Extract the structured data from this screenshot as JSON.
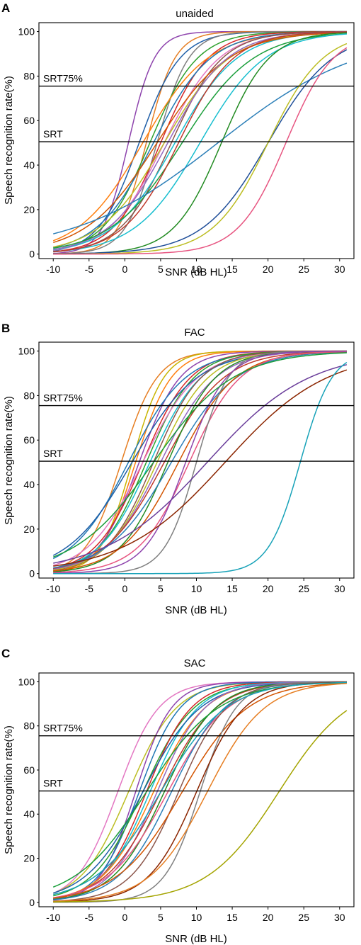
{
  "chart_data": [
    {
      "type": "line",
      "panel_label": "A",
      "title": "unaided",
      "xlabel": "SNR (dB HL)",
      "ylabel": "Speech recognition rate(%)",
      "xlim": [
        -12,
        32
      ],
      "ylim": [
        -2,
        104
      ],
      "xticks": [
        -10,
        -5,
        0,
        5,
        10,
        15,
        20,
        25,
        30
      ],
      "yticks": [
        0,
        20,
        40,
        60,
        80,
        100
      ],
      "reference_lines": [
        {
          "label": "SRT75%",
          "y": 75.5
        },
        {
          "label": "SRT",
          "y": 50.5
        }
      ],
      "x_range": [
        -10,
        31
      ],
      "series": [
        {
          "color": "#8e44ad",
          "srt": 0.5,
          "slope": 0.55
        },
        {
          "color": "#e67e22",
          "srt": 3.0,
          "slope": 0.5
        },
        {
          "color": "#1f5fa8",
          "srt": 2.0,
          "slope": 0.35
        },
        {
          "color": "#7f7f7f",
          "srt": 4.5,
          "slope": 0.45
        },
        {
          "color": "#2ca02c",
          "srt": 3.5,
          "slope": 0.3
        },
        {
          "color": "#d62728",
          "srt": 5.0,
          "slope": 0.3
        },
        {
          "color": "#ff7f0e",
          "srt": 2.5,
          "slope": 0.22
        },
        {
          "color": "#1f77b4",
          "srt": 4.0,
          "slope": 0.25
        },
        {
          "color": "#e377c2",
          "srt": 5.5,
          "slope": 0.26
        },
        {
          "color": "#8c564b",
          "srt": 6.5,
          "slope": 0.28
        },
        {
          "color": "#bcbd22",
          "srt": 5.5,
          "slope": 0.22
        },
        {
          "color": "#17becf",
          "srt": 7.0,
          "slope": 0.23
        },
        {
          "color": "#d35400",
          "srt": 4.5,
          "slope": 0.2
        },
        {
          "color": "#9467bd",
          "srt": 6.0,
          "slope": 0.24
        },
        {
          "color": "#1a9e3a",
          "srt": 8.0,
          "slope": 0.2
        },
        {
          "color": "#17becf",
          "srt": 10.5,
          "slope": 0.22
        },
        {
          "color": "#c0392b",
          "srt": 7.5,
          "slope": 0.26
        },
        {
          "color": "#2c7fb8",
          "srt": 13.0,
          "slope": 0.1
        },
        {
          "color": "#228b22",
          "srt": 13.5,
          "slope": 0.3
        },
        {
          "color": "#1f4e99",
          "srt": 20.0,
          "slope": 0.22
        },
        {
          "color": "#bcbd22",
          "srt": 20.0,
          "slope": 0.26
        },
        {
          "color": "#e75480",
          "srt": 22.5,
          "slope": 0.3
        }
      ]
    },
    {
      "type": "line",
      "panel_label": "B",
      "title": "FAC",
      "xlabel": "SNR (dB HL)",
      "ylabel": "Speech recognition rate(%)",
      "xlim": [
        -12,
        32
      ],
      "ylim": [
        -2,
        104
      ],
      "xticks": [
        -10,
        -5,
        0,
        5,
        10,
        15,
        20,
        25,
        30
      ],
      "yticks": [
        0,
        20,
        40,
        60,
        80,
        100
      ],
      "reference_lines": [
        {
          "label": "SRT75%",
          "y": 75.5
        },
        {
          "label": "SRT",
          "y": 50.5
        }
      ],
      "x_range": [
        -10,
        31
      ],
      "series": [
        {
          "color": "#e67e22",
          "srt": -0.5,
          "slope": 0.4
        },
        {
          "color": "#c8b400",
          "srt": 1.0,
          "slope": 0.45
        },
        {
          "color": "#ff7f0e",
          "srt": 1.5,
          "slope": 0.4
        },
        {
          "color": "#8e44ad",
          "srt": 2.0,
          "slope": 0.35
        },
        {
          "color": "#d62728",
          "srt": 2.5,
          "slope": 0.3
        },
        {
          "color": "#1f77b4",
          "srt": 0.5,
          "slope": 0.25
        },
        {
          "color": "#2ca02c",
          "srt": 3.0,
          "slope": 0.3
        },
        {
          "color": "#17becf",
          "srt": 3.5,
          "slope": 0.28
        },
        {
          "color": "#e377c2",
          "srt": 2.5,
          "slope": 0.26
        },
        {
          "color": "#1f5fa8",
          "srt": 1.0,
          "slope": 0.22
        },
        {
          "color": "#8c564b",
          "srt": 4.0,
          "slope": 0.3
        },
        {
          "color": "#bcbd22",
          "srt": 4.5,
          "slope": 0.28
        },
        {
          "color": "#9467bd",
          "srt": 5.0,
          "slope": 0.26
        },
        {
          "color": "#c0392b",
          "srt": 5.5,
          "slope": 0.24
        },
        {
          "color": "#228b22",
          "srt": 6.0,
          "slope": 0.3
        },
        {
          "color": "#2c7fb8",
          "srt": 6.5,
          "slope": 0.22
        },
        {
          "color": "#d35400",
          "srt": 7.5,
          "slope": 0.25
        },
        {
          "color": "#e75480",
          "srt": 9.0,
          "slope": 0.28
        },
        {
          "color": "#7f7f7f",
          "srt": 10.0,
          "slope": 0.45
        },
        {
          "color": "#8e44ad",
          "srt": 8.5,
          "slope": 0.35
        },
        {
          "color": "#1a9e3a",
          "srt": 4.0,
          "slope": 0.18
        },
        {
          "color": "#6a3d9a",
          "srt": 11.5,
          "slope": 0.14
        },
        {
          "color": "#8b2500",
          "srt": 14.0,
          "slope": 0.14
        },
        {
          "color": "#17a2b8",
          "srt": 24.5,
          "slope": 0.45
        }
      ]
    },
    {
      "type": "line",
      "panel_label": "C",
      "title": "SAC",
      "xlabel": "SNR (dB HL)",
      "ylabel": "Speech recognition rate(%)",
      "xlim": [
        -12,
        32
      ],
      "ylim": [
        -2,
        104
      ],
      "xticks": [
        -10,
        -5,
        0,
        5,
        10,
        15,
        20,
        25,
        30
      ],
      "yticks": [
        0,
        20,
        40,
        60,
        80,
        100
      ],
      "reference_lines": [
        {
          "label": "SRT75%",
          "y": 75.5
        },
        {
          "label": "SRT",
          "y": 50.5
        }
      ],
      "x_range": [
        -10,
        31
      ],
      "series": [
        {
          "color": "#e377c2",
          "srt": -1.0,
          "slope": 0.35
        },
        {
          "color": "#bcbd22",
          "srt": 0.5,
          "slope": 0.3
        },
        {
          "color": "#8e44ad",
          "srt": 1.5,
          "slope": 0.4
        },
        {
          "color": "#1f77b4",
          "srt": 2.0,
          "slope": 0.35
        },
        {
          "color": "#2ca02c",
          "srt": 2.5,
          "slope": 0.28
        },
        {
          "color": "#d62728",
          "srt": 3.0,
          "slope": 0.32
        },
        {
          "color": "#17becf",
          "srt": 3.5,
          "slope": 0.3
        },
        {
          "color": "#ff7f0e",
          "srt": 4.0,
          "slope": 0.28
        },
        {
          "color": "#1f5fa8",
          "srt": 2.5,
          "slope": 0.25
        },
        {
          "color": "#9467bd",
          "srt": 4.5,
          "slope": 0.3
        },
        {
          "color": "#c0392b",
          "srt": 5.0,
          "slope": 0.26
        },
        {
          "color": "#228b22",
          "srt": 5.5,
          "slope": 0.28
        },
        {
          "color": "#e75480",
          "srt": 6.0,
          "slope": 0.24
        },
        {
          "color": "#2c7fb8",
          "srt": 6.5,
          "slope": 0.27
        },
        {
          "color": "#8c564b",
          "srt": 7.5,
          "slope": 0.3
        },
        {
          "color": "#d35400",
          "srt": 8.0,
          "slope": 0.22
        },
        {
          "color": "#7f7f7f",
          "srt": 10.5,
          "slope": 0.4
        },
        {
          "color": "#8b2500",
          "srt": 10.0,
          "slope": 0.3
        },
        {
          "color": "#1a9e3a",
          "srt": 3.0,
          "slope": 0.2
        },
        {
          "color": "#17a2b8",
          "srt": 5.0,
          "slope": 0.22
        },
        {
          "color": "#e67e22",
          "srt": 11.5,
          "slope": 0.25
        },
        {
          "color": "#a4a400",
          "srt": 21.5,
          "slope": 0.2
        }
      ]
    }
  ]
}
